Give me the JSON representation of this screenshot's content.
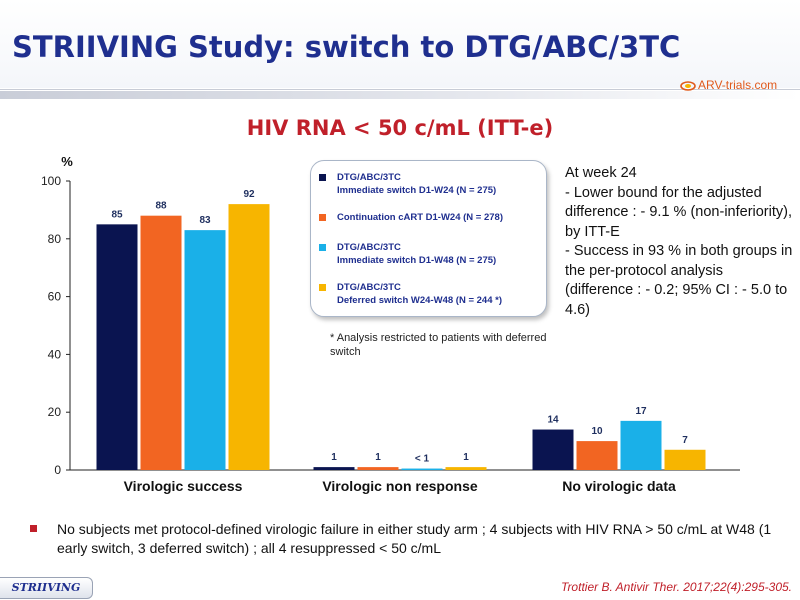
{
  "slide": {
    "title": "STRIIVING Study: switch to DTG/ABC/3TC",
    "logo_text": "ARV-trials.com",
    "footer_tag": "STRIIVING",
    "citation": "Trottier B. Antivir Ther. 2017;22(4):295-305."
  },
  "legend": [
    {
      "line1": "DTG/ABC/3TC",
      "line2": "Immediate switch D1-W24 (N = 275)"
    },
    {
      "line1": "Continuation cART D1-W24 (N = 278)",
      "line2": ""
    },
    {
      "line1": "DTG/ABC/3TC",
      "line2": "Immediate switch D1-W48  (N = 275)"
    },
    {
      "line1": "DTG/ABC/3TC",
      "line2": "Deferred switch W24-W48 (N = 244 *)"
    }
  ],
  "footnote": "* Analysis restricted to patients with deferred switch",
  "note": [
    "At week 24",
    "- Lower bound for the adjusted difference : - 9.1 % (non-inferiority), by ITT-E",
    "- Success in 93 % in both groups in the per-protocol analysis (difference : - 0.2; 95% CI : - 5.0 to 4.6)"
  ],
  "bullet": "No subjects met protocol-defined virologic failure in either  study arm ; 4 subjects with HIV RNA > 50 c/mL at W48 (1 early switch, 3 deferred switch) ; all 4 resuppressed < 50 c/mL",
  "colors": {
    "title": "#1f2f8f",
    "accent": "#c0202a",
    "logo": "#e05a1c"
  },
  "chart_data": {
    "type": "bar",
    "title": "HIV RNA < 50 c/mL (ITT-e)",
    "ylabel": "%",
    "ylim": [
      0,
      100
    ],
    "yticks": [
      0,
      20,
      40,
      60,
      80,
      100
    ],
    "categories": [
      "Virologic success",
      "Virologic non response",
      "No virologic data"
    ],
    "series": [
      {
        "name": "DTG/ABC/3TC Immediate switch D1-W24 (N = 275)",
        "color": "#0a1450",
        "values": [
          85,
          1,
          14
        ],
        "labels": [
          "85",
          "1",
          "14"
        ]
      },
      {
        "name": "Continuation cART D1-W24 (N = 278)",
        "color": "#f26522",
        "values": [
          88,
          1,
          10
        ],
        "labels": [
          "88",
          "1",
          "10"
        ]
      },
      {
        "name": "DTG/ABC/3TC Immediate switch D1-W48  (N = 275)",
        "color": "#1ab0e8",
        "values": [
          83,
          0.5,
          17
        ],
        "labels": [
          "83",
          "< 1",
          "17"
        ]
      },
      {
        "name": "DTG/ABC/3TC Deferred switch W24-W48 (N = 244 *)",
        "color": "#f7b500",
        "values": [
          92,
          1,
          7
        ],
        "labels": [
          "92",
          "1",
          "7"
        ]
      }
    ],
    "grid": false,
    "legend_position": "top-center"
  }
}
